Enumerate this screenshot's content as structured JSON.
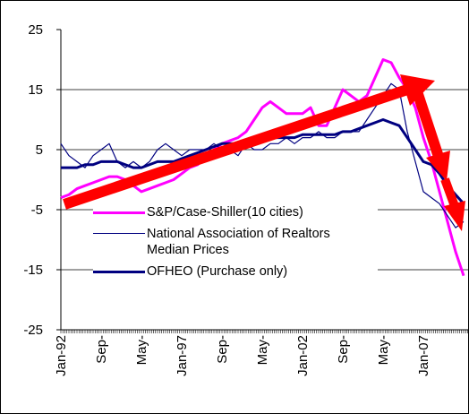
{
  "chart_data": {
    "type": "line",
    "categories": [
      "Jan-92",
      null,
      null,
      null,
      null,
      "Sep-",
      null,
      null,
      null,
      null,
      "May-",
      null,
      null,
      null,
      null,
      "Jan-97",
      null,
      null,
      null,
      null,
      "Sep-",
      null,
      null,
      null,
      null,
      "May-",
      null,
      null,
      null,
      null,
      "Jan-02",
      null,
      null,
      null,
      null,
      "Sep-",
      null,
      null,
      null,
      null,
      "May-",
      null,
      null,
      null,
      null,
      "Jan-07",
      null,
      null,
      null,
      null,
      null
    ],
    "series": [
      {
        "name": "S&P/Case-Shiller(10 cities)",
        "color": "#ff00ff",
        "values": [
          -3,
          -2.5,
          -1.5,
          -1,
          -0.5,
          0,
          0.5,
          0.5,
          0,
          -1,
          -2,
          -1.5,
          -1,
          -0.5,
          0,
          1,
          2,
          2.5,
          4,
          5,
          6,
          6.5,
          7,
          8,
          10,
          12,
          13,
          12,
          11,
          11,
          11,
          12,
          9,
          9,
          12,
          15,
          14,
          13,
          14,
          17,
          20,
          19.5,
          17,
          15,
          12,
          7,
          3,
          -2,
          -7,
          -12,
          -16
        ]
      },
      {
        "name": "National Association of Realtors Median Prices",
        "color": "#000080",
        "values": [
          6,
          4,
          3,
          2,
          4,
          5,
          6,
          3,
          2,
          3,
          2,
          3,
          5,
          6,
          5,
          4,
          5,
          5,
          5,
          6,
          5,
          5,
          4,
          6,
          5,
          5,
          6,
          6,
          7,
          6,
          7,
          7,
          8,
          7,
          7,
          8,
          8,
          8,
          10,
          12,
          14,
          16,
          15,
          8,
          3,
          -2,
          -3,
          -4,
          -6,
          -8,
          -7
        ]
      },
      {
        "name": "OFHEO (Purchase only)",
        "color": "#000080",
        "values": [
          2,
          2,
          2,
          2.5,
          2.5,
          3,
          3,
          3,
          2.5,
          2,
          2,
          2.5,
          3,
          3,
          3,
          3.5,
          4,
          4.5,
          5,
          5.5,
          6,
          6,
          6,
          6.5,
          6.5,
          6.5,
          7,
          7,
          7,
          7,
          7.5,
          7.5,
          7.5,
          7.5,
          7.5,
          8,
          8,
          8.5,
          9,
          9.5,
          10,
          9.5,
          9,
          7,
          5,
          3,
          2.5,
          1,
          -1,
          -2.5,
          -4
        ]
      }
    ],
    "ylim": [
      -25,
      25
    ],
    "yticks": [
      -25,
      -15,
      -5,
      5,
      15,
      25
    ],
    "grid": true
  }
}
